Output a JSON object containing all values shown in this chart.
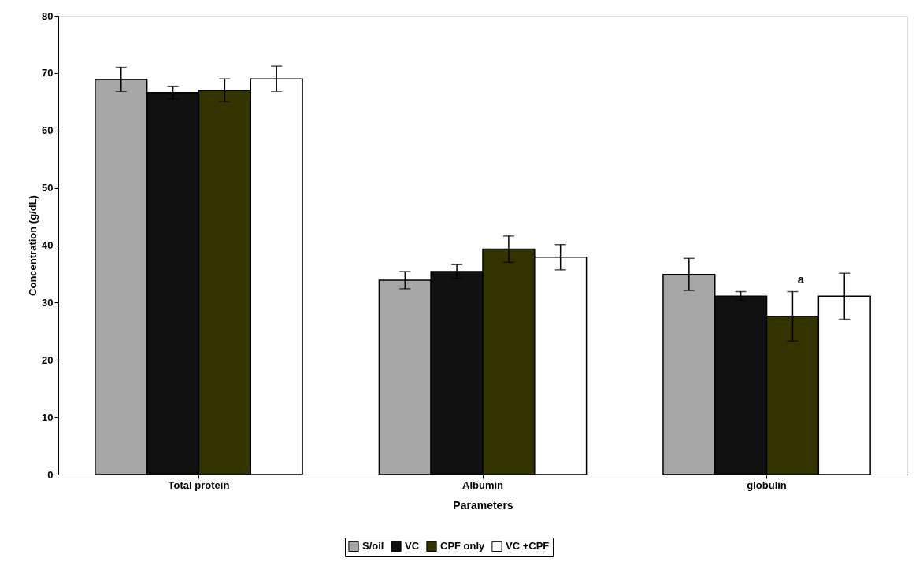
{
  "chart_data": {
    "type": "bar",
    "xlabel": "Parameters",
    "ylabel": "Concentration (g/dL)",
    "categories": [
      "Total protein",
      "Albumin",
      "globulin"
    ],
    "series": [
      {
        "name": "S/oil",
        "color": "#a6a6a6",
        "values": [
          68.9,
          33.9,
          34.9
        ],
        "errors": [
          2.1,
          1.5,
          2.8
        ]
      },
      {
        "name": "VC",
        "color": "#111111",
        "values": [
          66.6,
          35.4,
          31.1
        ],
        "errors": [
          1.1,
          1.2,
          0.8
        ]
      },
      {
        "name": "CPF only",
        "color": "#333300",
        "values": [
          67.0,
          39.3,
          27.6
        ],
        "errors": [
          2.0,
          2.3,
          4.3
        ]
      },
      {
        "name": "VC +CPF",
        "color": "#ffffff",
        "values": [
          69.0,
          37.9,
          31.1
        ],
        "errors": [
          2.2,
          2.2,
          4.0
        ]
      }
    ],
    "ylim": [
      0,
      80
    ],
    "yticks": [
      0,
      10,
      20,
      30,
      40,
      50,
      60,
      70,
      80
    ],
    "annotations": [
      "a"
    ],
    "grid": false,
    "legend": "bottom"
  }
}
